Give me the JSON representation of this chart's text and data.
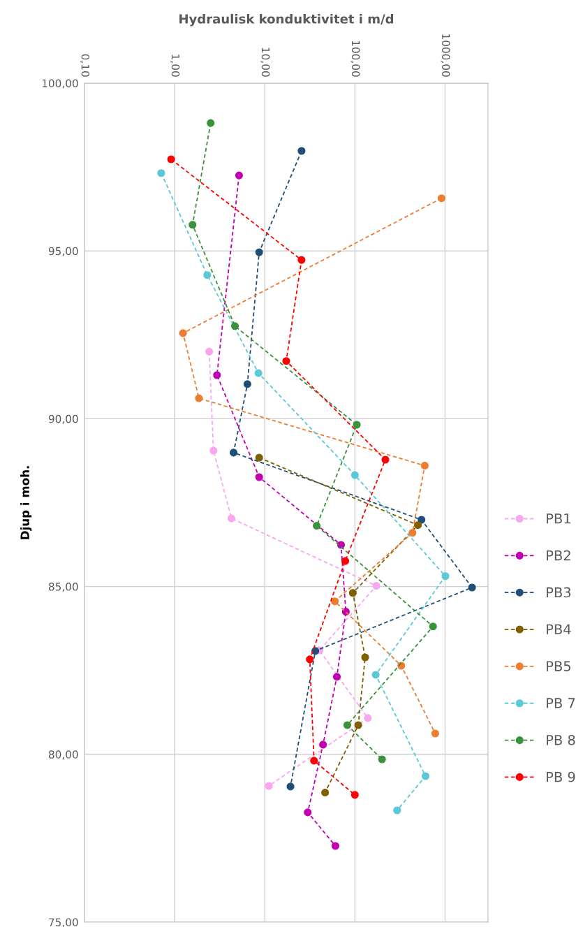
{
  "chart_data": {
    "type": "line",
    "xlabel": "Hydraulisk konduktivitet i m/d",
    "ylabel": "Djup i moh.",
    "log": "x",
    "grid": true,
    "legend": "right",
    "marker": "circle",
    "line_style": "dashed",
    "xlim": [
      0.1,
      3000
    ],
    "xticks": [
      {
        "value": 0.1,
        "label": "0,10"
      },
      {
        "value": 1,
        "label": "1,00"
      },
      {
        "value": 10,
        "label": "10,00"
      },
      {
        "value": 100,
        "label": "100,00"
      },
      {
        "value": 1000,
        "label": "1000,00"
      }
    ],
    "ylim": [
      75,
      100
    ],
    "yticks": [
      {
        "value": 75,
        "label": "75,00"
      },
      {
        "value": 80,
        "label": "80,00"
      },
      {
        "value": 85,
        "label": "85,00"
      },
      {
        "value": 90,
        "label": "90,00"
      },
      {
        "value": 95,
        "label": "95,00"
      },
      {
        "value": 100,
        "label": "100,00"
      }
    ],
    "series": [
      {
        "name": "PB1",
        "color": "#f9a6f0",
        "x": [
          2.42,
          2.7,
          4.27,
          173,
          40.4,
          139,
          11.1
        ],
        "values": [
          92.0,
          89.05,
          87.03,
          85.02,
          83.1,
          81.08,
          79.06
        ]
      },
      {
        "name": "PB2",
        "color": "#c000b0",
        "x": [
          5.19,
          2.95,
          8.67,
          70.2,
          79.4,
          63.1,
          44.3,
          30.0,
          60.8
        ],
        "values": [
          97.25,
          91.3,
          88.26,
          86.24,
          84.25,
          82.31,
          80.29,
          78.27,
          77.27
        ]
      },
      {
        "name": "PB3",
        "color": "#1f4e79",
        "x": [
          25.6,
          8.67,
          6.42,
          4.51,
          548,
          1995,
          36.4,
          19.3
        ],
        "values": [
          97.98,
          94.96,
          91.03,
          88.99,
          86.99,
          84.97,
          83.08,
          79.04
        ]
      },
      {
        "name": "PB4",
        "color": "#7f6000",
        "x": [
          8.67,
          500,
          94.9,
          130,
          109,
          46.7
        ],
        "values": [
          88.84,
          86.83,
          84.81,
          82.89,
          80.87,
          78.86
        ]
      },
      {
        "name": "PB5",
        "color": "#ed7d31",
        "x": [
          914,
          1.24,
          1.86,
          596,
          435,
          59.9,
          327,
          779
        ],
        "values": [
          96.57,
          92.55,
          90.61,
          88.6,
          86.6,
          84.56,
          82.64,
          80.62
        ]
      },
      {
        "name": "PB 7",
        "color": "#5bc8d8",
        "x": [
          0.71,
          2.3,
          8.51,
          100,
          1010,
          170,
          608,
          294
        ],
        "values": [
          97.32,
          94.28,
          91.36,
          88.32,
          85.31,
          82.37,
          79.35,
          78.33
        ]
      },
      {
        "name": "PB 8",
        "color": "#3a923a",
        "x": [
          2.51,
          1.58,
          4.67,
          105,
          37.7,
          736,
          82.4,
          200
        ],
        "values": [
          98.81,
          95.78,
          92.76,
          89.82,
          86.81,
          83.81,
          80.87,
          79.85
        ]
      },
      {
        "name": "PB 9",
        "color": "#ff0000",
        "x": [
          0.915,
          25.6,
          17.3,
          218,
          78.2,
          31.6,
          35.2,
          100
        ],
        "values": [
          97.73,
          94.73,
          91.72,
          88.78,
          85.76,
          82.83,
          79.81,
          78.79
        ]
      }
    ]
  }
}
